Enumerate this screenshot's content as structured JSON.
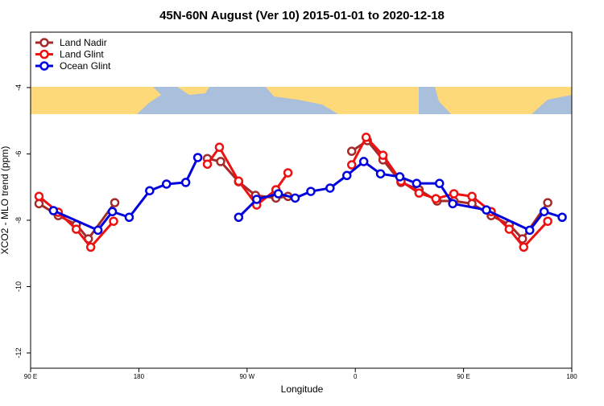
{
  "chart_data": {
    "type": "line",
    "title": "45N-60N August (Ver 10)   2015-01-01 to 2020-12-18",
    "x_label": "Longitude",
    "y_label": "XCO2 - MLO trend (ppm)",
    "xlim": [
      90,
      540
    ],
    "ylim": [
      -12.46,
      -2.33
    ],
    "xticks": [
      {
        "value": 90,
        "label": "90 E"
      },
      {
        "value": 180,
        "label": "180"
      },
      {
        "value": 270,
        "label": "90 W"
      },
      {
        "value": 360,
        "label": "0"
      },
      {
        "value": 450,
        "label": "90 E"
      },
      {
        "value": 540,
        "label": "180"
      }
    ],
    "yticks": [
      -4,
      -6,
      -8,
      -10,
      -12
    ],
    "legend": "top-left",
    "series": [
      {
        "name": "Land Nadir",
        "color": "#a52a2a",
        "x": [
          97,
          113,
          128,
          138,
          160,
          null,
          237,
          248,
          263,
          277,
          294,
          304,
          null,
          357,
          370,
          383,
          398,
          413,
          428,
          442,
          457,
          473,
          488,
          499,
          520
        ],
        "values": [
          -7.5,
          -7.86,
          -8.13,
          -8.56,
          -7.47,
          null,
          -6.14,
          -6.23,
          -6.84,
          -7.25,
          -7.33,
          -7.28,
          null,
          -5.92,
          -5.6,
          -6.18,
          -6.86,
          -7.08,
          -7.42,
          -7.42,
          -7.5,
          -7.86,
          -8.13,
          -8.56,
          -7.47
        ]
      },
      {
        "name": "Land Glint",
        "color": "#ee1111",
        "x": [
          97,
          113,
          128,
          140,
          159,
          null,
          237,
          247,
          263,
          278,
          294,
          304,
          null,
          357,
          369,
          383,
          398,
          413,
          427,
          442,
          457,
          473,
          488,
          500,
          520
        ],
        "values": [
          -7.28,
          -7.76,
          -8.27,
          -8.81,
          -8.03,
          null,
          -6.31,
          -5.8,
          -6.82,
          -7.54,
          -7.08,
          -6.57,
          null,
          -6.33,
          -5.5,
          -6.04,
          -6.82,
          -7.18,
          -7.35,
          -7.2,
          -7.28,
          -7.74,
          -8.27,
          -8.81,
          -8.03
        ]
      },
      {
        "name": "Ocean Glint",
        "color": "#0000dd",
        "x": [
          109,
          146,
          158,
          172,
          189,
          203,
          219,
          229,
          null,
          263,
          278,
          296,
          310,
          323,
          339,
          353,
          367,
          381,
          397,
          411,
          430,
          441,
          469,
          505,
          517,
          532
        ],
        "values": [
          -7.71,
          -8.3,
          -7.74,
          -7.91,
          -7.11,
          -6.91,
          -6.86,
          -6.11,
          null,
          -7.91,
          -7.37,
          -7.2,
          -7.33,
          -7.13,
          -7.03,
          -6.65,
          -6.23,
          -6.6,
          -6.69,
          -6.89,
          -6.89,
          -7.5,
          -7.69,
          -8.3,
          -7.74,
          -7.91
        ]
      }
    ]
  }
}
